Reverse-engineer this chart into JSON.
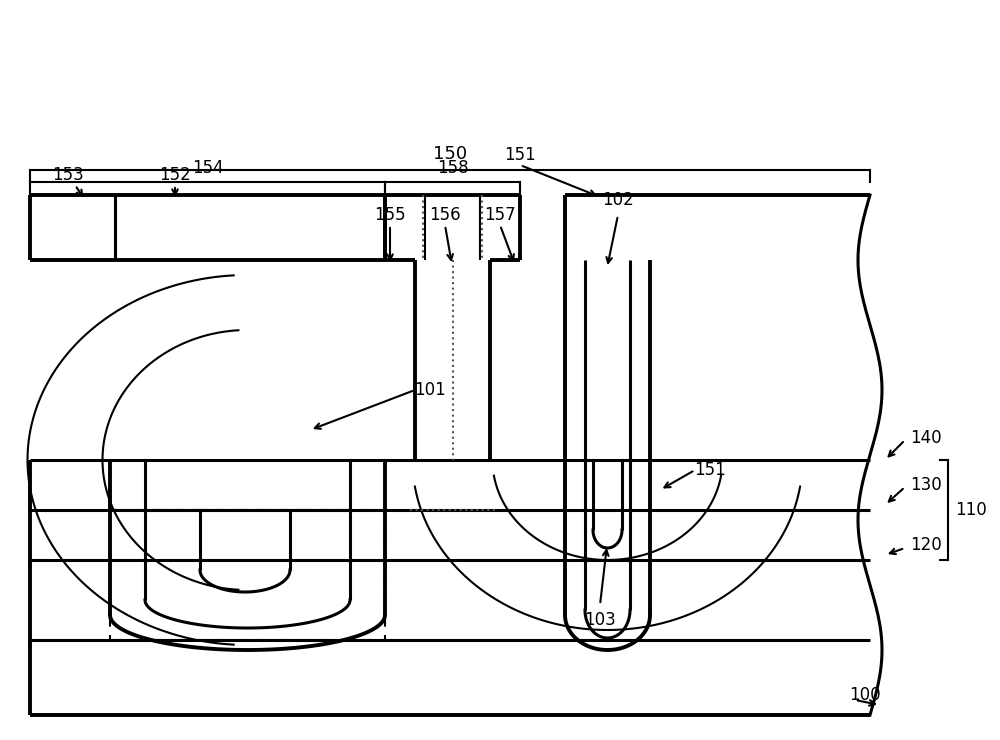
{
  "bg_color": "#ffffff",
  "line_color": "#000000",
  "figsize": [
    10.0,
    7.4
  ],
  "dpi": 100
}
